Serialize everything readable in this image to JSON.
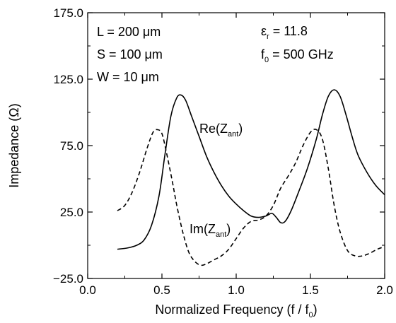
{
  "chart_data": {
    "type": "line",
    "title": "",
    "xlabel": "Normalized Frequency (f / f",
    "xlabel_sub": "0",
    "xlabel_end": ")",
    "ylabel": "Impedance  (Ω)",
    "xlim": [
      0.0,
      2.0
    ],
    "ylim": [
      -25.0,
      175.0
    ],
    "x_ticks": [
      0.0,
      0.5,
      1.0,
      1.5,
      2.0
    ],
    "x_tick_labels": [
      "0.0",
      "0.5",
      "1.0",
      "1.5",
      "2.0"
    ],
    "y_ticks": [
      -25.0,
      25.0,
      75.0,
      125.0,
      175.0
    ],
    "y_tick_labels": [
      "−25.0",
      "25.0",
      "75.0",
      "125.0",
      "175.0"
    ],
    "grid": false,
    "annotations": {
      "L": "L = 200 μm",
      "S": "S = 100 μm",
      "W": "W = 10  μm",
      "er_main": "ε",
      "er_sub": "r",
      "er_value": " = 11.8",
      "f0_main": "f",
      "f0_sub": "0",
      "f0_value": " = 500 GHz"
    },
    "series": [
      {
        "name": "Re(Z",
        "name_sub": "ant",
        "name_end": ")",
        "style": "solid",
        "color": "#000000",
        "x": [
          0.2,
          0.27,
          0.33,
          0.38,
          0.43,
          0.48,
          0.52,
          0.56,
          0.6,
          0.63,
          0.66,
          0.7,
          0.75,
          0.8,
          0.85,
          0.9,
          0.95,
          1.0,
          1.05,
          1.1,
          1.15,
          1.2,
          1.24,
          1.27,
          1.3,
          1.33,
          1.37,
          1.42,
          1.48,
          1.54,
          1.58,
          1.62,
          1.66,
          1.7,
          1.74,
          1.78,
          1.82,
          1.88,
          1.94,
          2.0
        ],
        "y": [
          -3,
          -2,
          0,
          4,
          15,
          37,
          68,
          97,
          111,
          113,
          109,
          97,
          82,
          67,
          55,
          45,
          37,
          31,
          26,
          22,
          21,
          22,
          24,
          21,
          17,
          18,
          26,
          40,
          58,
          80,
          98,
          112,
          117,
          112,
          98,
          82,
          68,
          55,
          45,
          38
        ]
      },
      {
        "name": "Im(Z",
        "name_sub": "ant",
        "name_end": ")",
        "style": "dashed",
        "color": "#000000",
        "x": [
          0.2,
          0.25,
          0.3,
          0.35,
          0.4,
          0.44,
          0.47,
          0.5,
          0.53,
          0.57,
          0.6,
          0.64,
          0.68,
          0.72,
          0.76,
          0.8,
          0.85,
          0.9,
          0.95,
          1.0,
          1.05,
          1.1,
          1.15,
          1.2,
          1.25,
          1.3,
          1.35,
          1.4,
          1.45,
          1.5,
          1.54,
          1.58,
          1.62,
          1.66,
          1.7,
          1.75,
          1.8,
          1.85,
          1.9,
          1.95,
          2.0
        ],
        "y": [
          26,
          30,
          40,
          55,
          73,
          85,
          87,
          84,
          70,
          48,
          30,
          10,
          -5,
          -12,
          -15,
          -14,
          -11,
          -8,
          -3,
          5,
          13,
          18,
          19,
          22,
          30,
          43,
          52,
          62,
          75,
          85,
          87,
          80,
          58,
          30,
          10,
          -4,
          -8,
          -8,
          -6,
          -3,
          -1
        ]
      }
    ]
  }
}
